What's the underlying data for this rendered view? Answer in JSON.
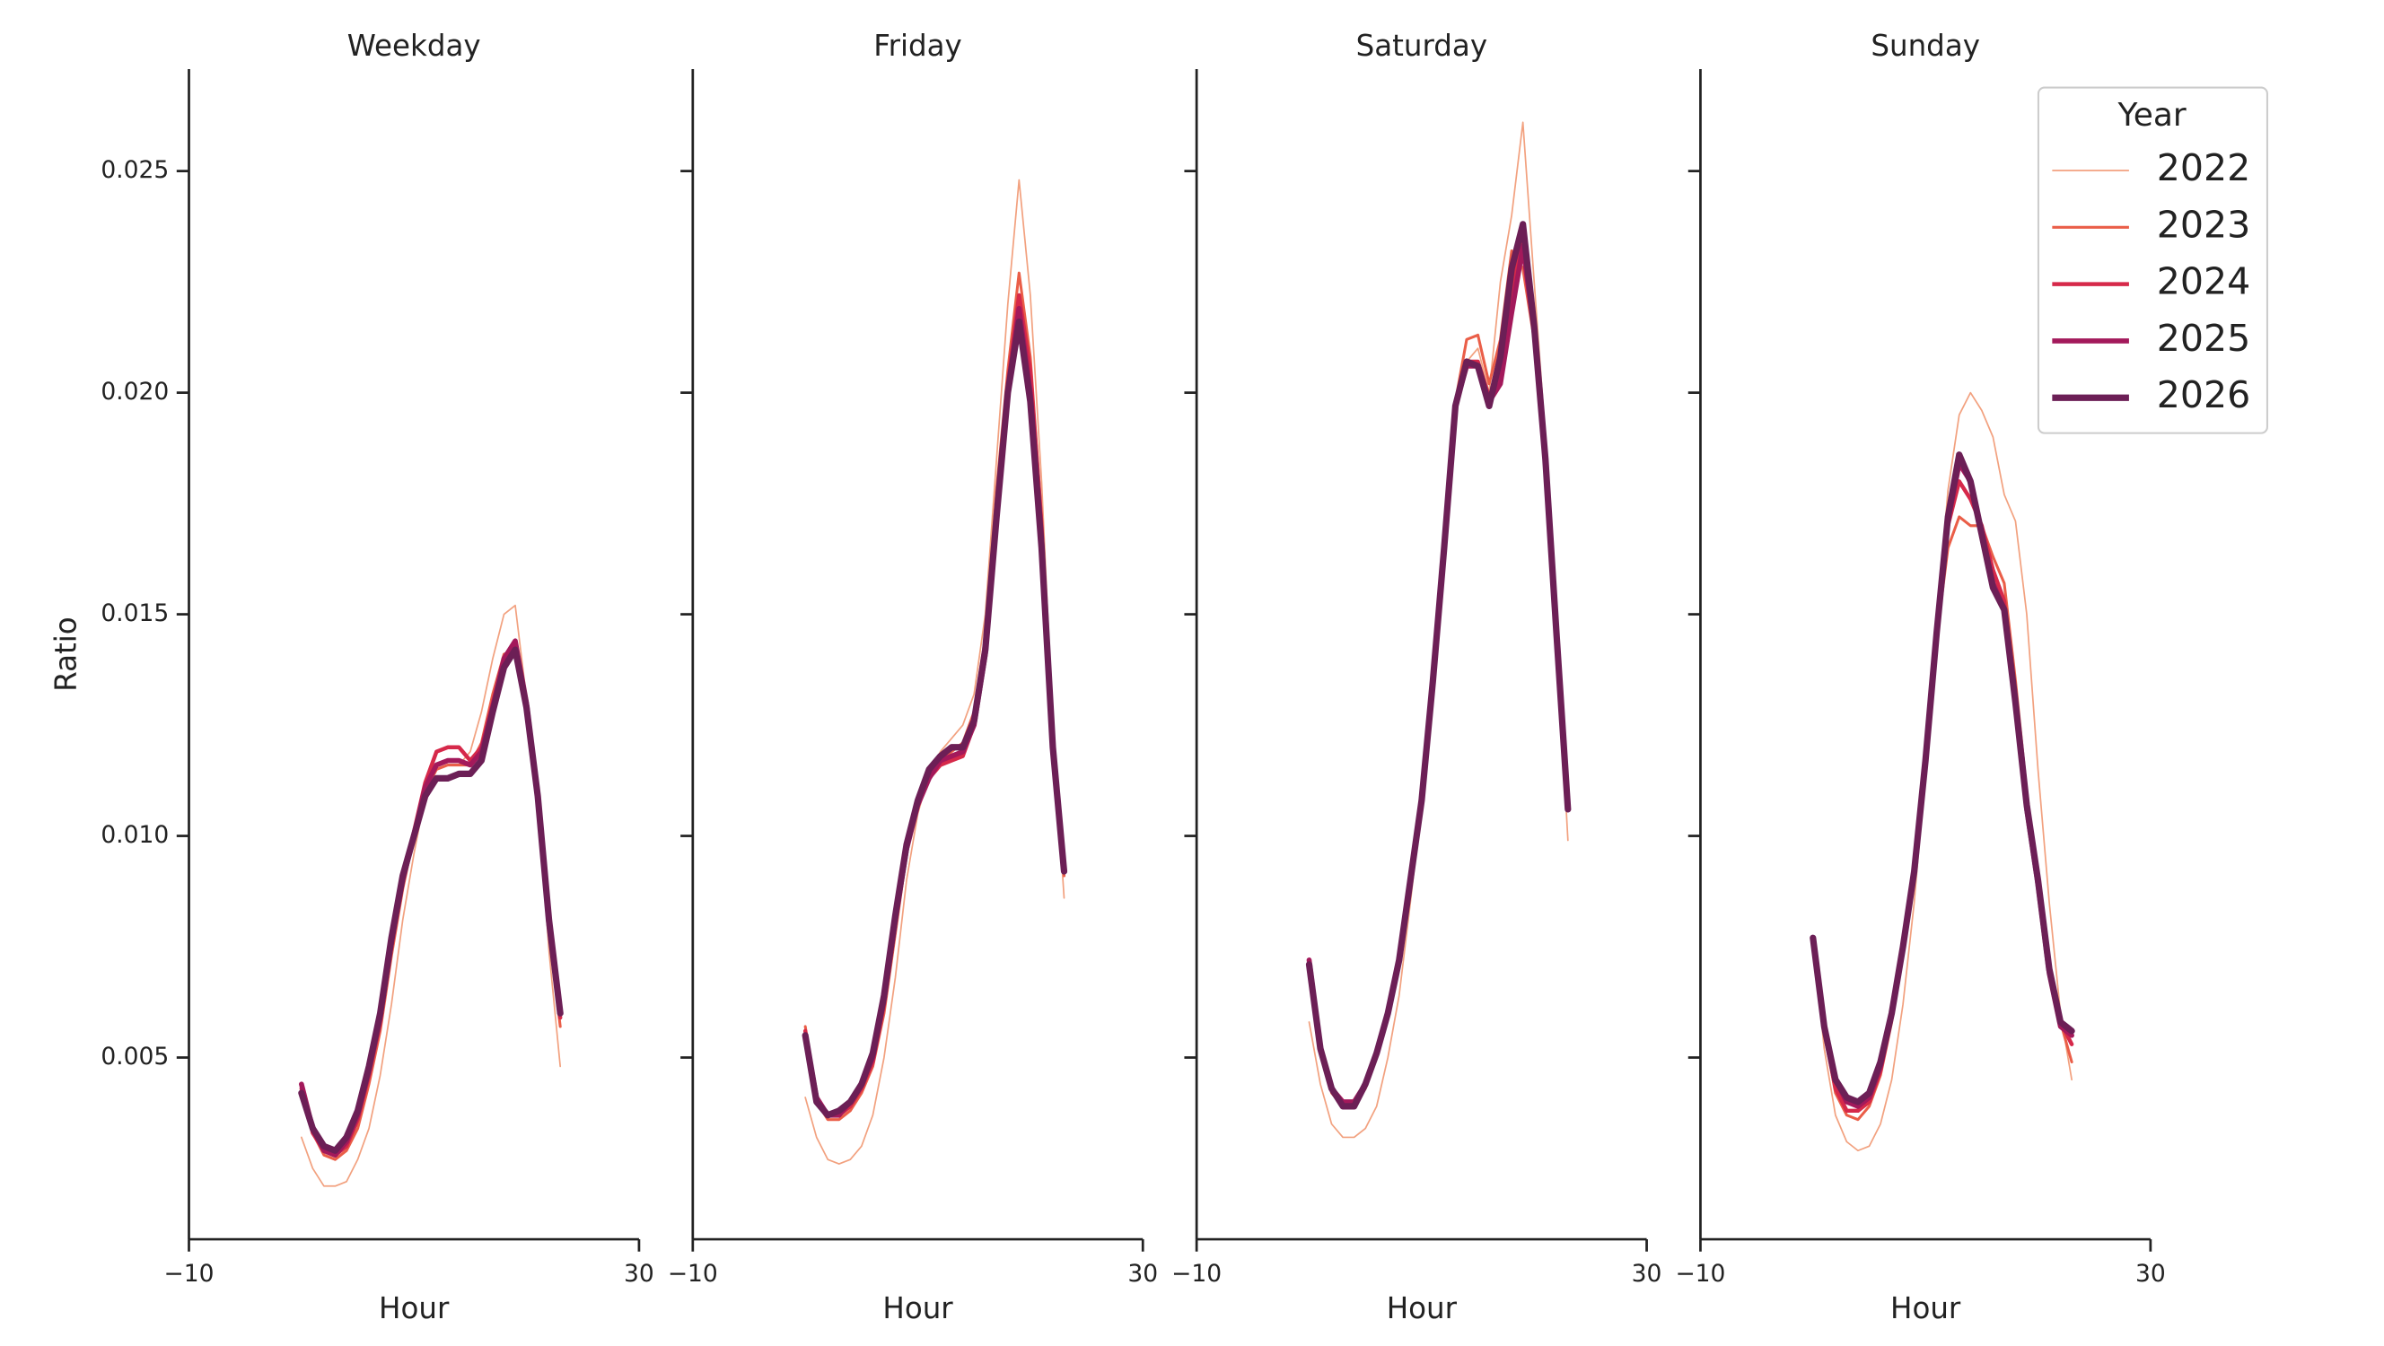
{
  "chart_data": [
    {
      "type": "line",
      "title": "Weekday",
      "x_label": "Hour",
      "y_label": "Ratio",
      "x": [
        0,
        1,
        2,
        3,
        4,
        5,
        6,
        7,
        8,
        9,
        10,
        11,
        12,
        13,
        14,
        15,
        16,
        17,
        18,
        19,
        20,
        21,
        22,
        23
      ],
      "xlim": [
        -10,
        30
      ],
      "xticks": [
        {
          "value": -10,
          "label": "−10"
        },
        30
      ],
      "ylim": [
        0.0009,
        0.0273
      ],
      "yticks": [
        0.005,
        {
          "value": 0.01,
          "label": "0.010"
        },
        0.015,
        {
          "value": 0.02,
          "label": "0.020"
        },
        0.025
      ],
      "series": [
        {
          "color": "#f2a17f",
          "values": [
            0.0032,
            0.0025,
            0.0021,
            0.0021,
            0.0022,
            0.0027,
            0.0034,
            0.0046,
            0.0062,
            0.0081,
            0.0096,
            0.0109,
            0.0115,
            0.0116,
            0.0116,
            0.0119,
            0.0128,
            0.014,
            0.015,
            0.0152,
            0.0131,
            0.0109,
            0.0074,
            0.0048
          ]
        },
        {
          "color": "#ea5e48",
          "values": [
            0.0042,
            0.0033,
            0.0028,
            0.0027,
            0.0029,
            0.0034,
            0.0044,
            0.0056,
            0.0073,
            0.0088,
            0.01,
            0.011,
            0.0115,
            0.0116,
            0.0116,
            0.0116,
            0.0121,
            0.0132,
            0.0141,
            0.0142,
            0.013,
            0.0108,
            0.0078,
            0.0057
          ]
        },
        {
          "color": "#d6294a",
          "values": [
            0.0043,
            0.0033,
            0.0029,
            0.0028,
            0.003,
            0.0036,
            0.0046,
            0.0058,
            0.0075,
            0.009,
            0.0101,
            0.0112,
            0.0119,
            0.012,
            0.012,
            0.0117,
            0.012,
            0.013,
            0.014,
            0.0143,
            0.013,
            0.0108,
            0.0079,
            0.0059
          ]
        },
        {
          "color": "#a3195b",
          "values": [
            0.0044,
            0.0034,
            0.0029,
            0.0028,
            0.0031,
            0.0037,
            0.0047,
            0.0059,
            0.0076,
            0.009,
            0.01,
            0.0111,
            0.0116,
            0.0117,
            0.0117,
            0.0116,
            0.0119,
            0.0129,
            0.014,
            0.0144,
            0.013,
            0.0109,
            0.008,
            0.006
          ]
        },
        {
          "color": "#6c1f56",
          "values": [
            0.0042,
            0.0034,
            0.003,
            0.0029,
            0.0032,
            0.0038,
            0.0048,
            0.006,
            0.0077,
            0.0091,
            0.01,
            0.0109,
            0.0113,
            0.0113,
            0.0114,
            0.0114,
            0.0117,
            0.0128,
            0.0138,
            0.0142,
            0.0129,
            0.0109,
            0.0081,
            0.006
          ]
        }
      ]
    },
    {
      "type": "line",
      "title": "Friday",
      "x_label": "Hour",
      "x": [
        0,
        1,
        2,
        3,
        4,
        5,
        6,
        7,
        8,
        9,
        10,
        11,
        12,
        13,
        14,
        15,
        16,
        17,
        18,
        19,
        20,
        21,
        22,
        23
      ],
      "xlim": [
        -10,
        30
      ],
      "xticks": [
        {
          "value": -10,
          "label": "−10"
        },
        30
      ],
      "series": [
        {
          "color": "#f2a17f",
          "values": [
            0.0041,
            0.0032,
            0.0027,
            0.0026,
            0.0027,
            0.003,
            0.0037,
            0.005,
            0.0068,
            0.009,
            0.0105,
            0.0114,
            0.0119,
            0.0122,
            0.0125,
            0.0132,
            0.015,
            0.0185,
            0.022,
            0.0248,
            0.0222,
            0.018,
            0.0125,
            0.0086
          ]
        },
        {
          "color": "#ea5e48",
          "values": [
            0.0057,
            0.004,
            0.0036,
            0.0036,
            0.0038,
            0.0042,
            0.0048,
            0.006,
            0.0078,
            0.0096,
            0.0107,
            0.0113,
            0.0117,
            0.0119,
            0.0121,
            0.0128,
            0.0145,
            0.0178,
            0.0205,
            0.0227,
            0.0208,
            0.0172,
            0.0122,
            0.0091
          ]
        },
        {
          "color": "#d6294a",
          "values": [
            0.0056,
            0.0041,
            0.0037,
            0.0037,
            0.0039,
            0.0043,
            0.0049,
            0.0062,
            0.008,
            0.0097,
            0.0107,
            0.0113,
            0.0116,
            0.0117,
            0.0118,
            0.0125,
            0.0142,
            0.0174,
            0.0202,
            0.0222,
            0.0205,
            0.017,
            0.0121,
            0.0092
          ]
        },
        {
          "color": "#a3195b",
          "values": [
            0.0055,
            0.0041,
            0.0037,
            0.0037,
            0.004,
            0.0044,
            0.005,
            0.0063,
            0.0081,
            0.0097,
            0.0107,
            0.0113,
            0.0117,
            0.0118,
            0.0119,
            0.0125,
            0.0141,
            0.0172,
            0.02,
            0.0219,
            0.02,
            0.0166,
            0.012,
            0.0092
          ]
        },
        {
          "color": "#6c1f56",
          "values": [
            0.0055,
            0.004,
            0.0037,
            0.0038,
            0.004,
            0.0044,
            0.0051,
            0.0064,
            0.0082,
            0.0098,
            0.0108,
            0.0115,
            0.0118,
            0.012,
            0.012,
            0.0126,
            0.0142,
            0.0172,
            0.02,
            0.0216,
            0.0198,
            0.0165,
            0.012,
            0.0092
          ]
        }
      ]
    },
    {
      "type": "line",
      "title": "Saturday",
      "x_label": "Hour",
      "x": [
        0,
        1,
        2,
        3,
        4,
        5,
        6,
        7,
        8,
        9,
        10,
        11,
        12,
        13,
        14,
        15,
        16,
        17,
        18,
        19,
        20,
        21,
        22,
        23
      ],
      "xlim": [
        -10,
        30
      ],
      "xticks": [
        {
          "value": -10,
          "label": "−10"
        },
        30
      ],
      "series": [
        {
          "color": "#f2a17f",
          "values": [
            0.0058,
            0.0044,
            0.0035,
            0.0032,
            0.0032,
            0.0034,
            0.0039,
            0.005,
            0.0064,
            0.0085,
            0.0107,
            0.0135,
            0.0168,
            0.0197,
            0.0207,
            0.021,
            0.02,
            0.0225,
            0.024,
            0.0261,
            0.0225,
            0.019,
            0.0145,
            0.0099
          ]
        },
        {
          "color": "#ea5e48",
          "values": [
            0.0072,
            0.0052,
            0.0042,
            0.0039,
            0.0039,
            0.0043,
            0.005,
            0.0059,
            0.0071,
            0.0089,
            0.0108,
            0.0135,
            0.0166,
            0.0198,
            0.0212,
            0.0213,
            0.0202,
            0.0212,
            0.0232,
            0.0228,
            0.0212,
            0.0184,
            0.0145,
            0.0106
          ]
        },
        {
          "color": "#d6294a",
          "values": [
            0.0072,
            0.0052,
            0.0043,
            0.004,
            0.004,
            0.0044,
            0.0051,
            0.006,
            0.0072,
            0.009,
            0.0108,
            0.0135,
            0.0165,
            0.0197,
            0.0207,
            0.0207,
            0.0199,
            0.0203,
            0.0222,
            0.0236,
            0.0214,
            0.0185,
            0.0145,
            0.0106
          ]
        },
        {
          "color": "#a3195b",
          "values": [
            0.0072,
            0.0052,
            0.0043,
            0.004,
            0.004,
            0.0044,
            0.0051,
            0.006,
            0.0072,
            0.009,
            0.0108,
            0.0135,
            0.0165,
            0.0197,
            0.0206,
            0.0206,
            0.0198,
            0.0202,
            0.0218,
            0.0233,
            0.0214,
            0.0185,
            0.0145,
            0.0106
          ]
        },
        {
          "color": "#6c1f56",
          "values": [
            0.0071,
            0.0052,
            0.0043,
            0.0039,
            0.0039,
            0.0044,
            0.0051,
            0.006,
            0.0072,
            0.009,
            0.0108,
            0.0135,
            0.0165,
            0.0197,
            0.0207,
            0.0206,
            0.0197,
            0.0208,
            0.0228,
            0.0238,
            0.0215,
            0.0185,
            0.0145,
            0.0106
          ]
        }
      ]
    },
    {
      "type": "line",
      "title": "Sunday",
      "x_label": "Hour",
      "legend_title": "Year",
      "x": [
        0,
        1,
        2,
        3,
        4,
        5,
        6,
        7,
        8,
        9,
        10,
        11,
        12,
        13,
        14,
        15,
        16,
        17,
        18,
        19,
        20,
        21,
        22,
        23
      ],
      "xlim": [
        -10,
        30
      ],
      "xticks": [
        {
          "value": -10,
          "label": "−10"
        },
        30
      ],
      "series": [
        {
          "name": "2022",
          "color": "#f2a17f",
          "values": [
            0.0077,
            0.0052,
            0.0037,
            0.0031,
            0.0029,
            0.003,
            0.0035,
            0.0045,
            0.0062,
            0.0085,
            0.0115,
            0.0148,
            0.0178,
            0.0195,
            0.02,
            0.0196,
            0.019,
            0.0177,
            0.0171,
            0.015,
            0.0115,
            0.0085,
            0.006,
            0.0045
          ]
        },
        {
          "name": "2023",
          "color": "#ea5e48",
          "values": [
            0.0077,
            0.0056,
            0.0042,
            0.0037,
            0.0036,
            0.0039,
            0.0046,
            0.0058,
            0.0074,
            0.0092,
            0.0117,
            0.0145,
            0.0165,
            0.0172,
            0.017,
            0.017,
            0.0163,
            0.0157,
            0.0135,
            0.011,
            0.009,
            0.007,
            0.0058,
            0.0049
          ]
        },
        {
          "name": "2024",
          "color": "#d6294a",
          "values": [
            0.0077,
            0.0056,
            0.0043,
            0.0038,
            0.0038,
            0.004,
            0.0047,
            0.0059,
            0.0075,
            0.0092,
            0.0117,
            0.0146,
            0.017,
            0.018,
            0.0176,
            0.017,
            0.016,
            0.0153,
            0.0132,
            0.0108,
            0.009,
            0.007,
            0.0058,
            0.0053
          ]
        },
        {
          "name": "2025",
          "color": "#a3195b",
          "values": [
            0.0077,
            0.0057,
            0.0045,
            0.004,
            0.0039,
            0.0041,
            0.0048,
            0.006,
            0.0075,
            0.0092,
            0.0117,
            0.0146,
            0.0171,
            0.0184,
            0.018,
            0.0168,
            0.0157,
            0.0151,
            0.013,
            0.0106,
            0.0089,
            0.0069,
            0.0057,
            0.0055
          ]
        },
        {
          "name": "2026",
          "color": "#6c1f56",
          "values": [
            0.0077,
            0.0057,
            0.0045,
            0.0041,
            0.004,
            0.0042,
            0.0049,
            0.006,
            0.0075,
            0.0092,
            0.0117,
            0.0146,
            0.0172,
            0.0186,
            0.018,
            0.0168,
            0.0156,
            0.0151,
            0.013,
            0.0107,
            0.009,
            0.007,
            0.0058,
            0.0056
          ]
        }
      ]
    }
  ]
}
